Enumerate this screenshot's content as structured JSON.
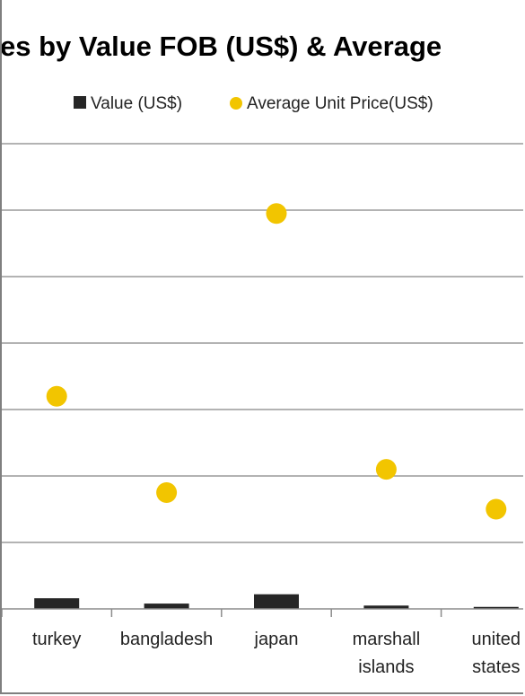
{
  "chart_data": {
    "type": "bar",
    "title": "es by Value FOB (US$) & Average",
    "categories": [
      [
        "turkey"
      ],
      [
        "bangladesh"
      ],
      [
        "japan"
      ],
      [
        "marshall",
        "islands"
      ],
      [
        "united",
        "states"
      ]
    ],
    "series": [
      {
        "name": "Value (US$)",
        "type": "bar",
        "color": "#262626",
        "values": [
          0.16,
          0.08,
          0.22,
          0.05,
          0.03
        ]
      },
      {
        "name": "Average Unit Price(US$)",
        "type": "scatter",
        "color": "#f2c500",
        "values": [
          3.2,
          1.75,
          5.95,
          2.1,
          1.5
        ]
      }
    ],
    "ylim": [
      0,
      7
    ],
    "grid": true,
    "legend": "top"
  }
}
